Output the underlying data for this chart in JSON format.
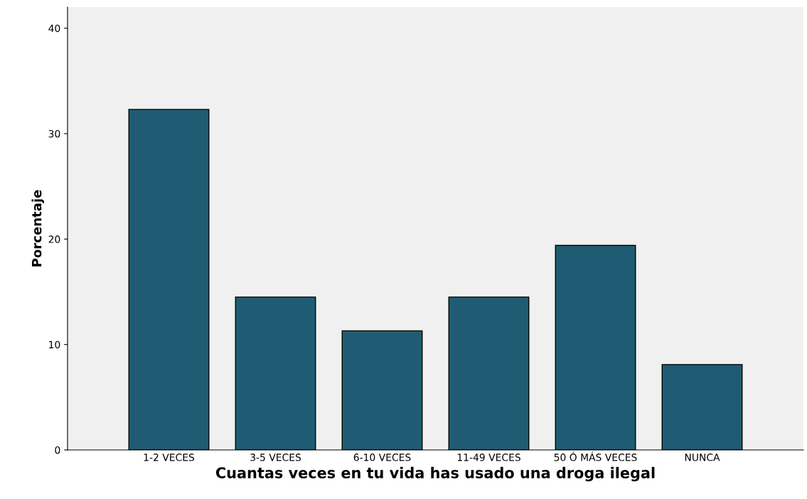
{
  "chart_data": {
    "type": "bar",
    "xlabel": "Cuantas veces en tu vida has usado una droga ilegal",
    "ylabel": "Porcentaje",
    "categories": [
      "1-2 VECES",
      "3-5 VECES",
      "6-10 VECES",
      "11-49 VECES",
      "50 Ó MÁS VECES",
      "NUNCA"
    ],
    "values": [
      32.3,
      14.5,
      11.3,
      14.5,
      19.4,
      8.1
    ],
    "color": "#1f5c73",
    "ylim": [
      0,
      42
    ],
    "yticks": [
      0,
      10,
      20,
      30,
      40
    ],
    "grid": false,
    "legend": false
  }
}
